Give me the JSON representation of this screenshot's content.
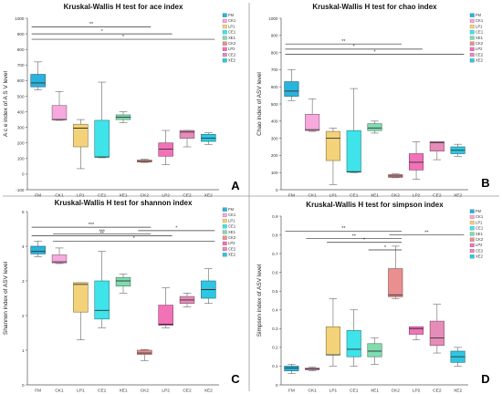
{
  "colors": {
    "FM": "#2ab3dc",
    "CK1": "#f5a9dc",
    "LP1": "#f3d27a",
    "CE1": "#3fe3ea",
    "XE1": "#7fdcaf",
    "CK2": "#ea8f8f",
    "LP2": "#f272b8",
    "CE2": "#e58cb8",
    "XE2": "#2ec7e3"
  },
  "chart_data": [
    {
      "type": "box",
      "title": "Kruskal-Wallis H test for ace index",
      "ylabel": "A c e index of A S V level",
      "panel_label": "A",
      "ylim": [
        -100,
        1000
      ],
      "yticks": [
        -100,
        0,
        100,
        200,
        300,
        400,
        500,
        600,
        700,
        800,
        900,
        1000
      ],
      "categories": [
        "FM",
        "CK1",
        "LP1",
        "CE1",
        "XE1",
        "CK2",
        "LP2",
        "CE2",
        "XE2"
      ],
      "boxes": [
        {
          "min": 540,
          "q1": 560,
          "median": 585,
          "q3": 640,
          "max": 720
        },
        {
          "min": 345,
          "q1": 348,
          "median": 350,
          "q3": 440,
          "max": 530
        },
        {
          "min": 35,
          "q1": 175,
          "median": 295,
          "q3": 320,
          "max": 350
        },
        {
          "min": 105,
          "q1": 108,
          "median": 110,
          "q3": 345,
          "max": 590
        },
        {
          "min": 330,
          "q1": 350,
          "median": 365,
          "q3": 380,
          "max": 400
        },
        {
          "min": 75,
          "q1": 78,
          "median": 82,
          "q3": 90,
          "max": 95
        },
        {
          "min": 60,
          "q1": 115,
          "median": 160,
          "q3": 200,
          "max": 280
        },
        {
          "min": 175,
          "q1": 230,
          "median": 270,
          "q3": 280,
          "max": 280
        },
        {
          "min": 190,
          "q1": 210,
          "median": 230,
          "q3": 255,
          "max": 265
        }
      ],
      "significance": [
        {
          "x1": "FM",
          "x2": "CK2",
          "y": 945,
          "text": "**"
        },
        {
          "x1": "FM",
          "x2": "LP2",
          "y": 900,
          "text": "*"
        },
        {
          "x1": "FM",
          "x2": "XE2",
          "y": 865,
          "text": "*"
        }
      ],
      "legend": [
        "FM",
        "CK1",
        "LP1",
        "CE1",
        "XE1",
        "CK2",
        "LP2",
        "CE2",
        "XE2"
      ]
    },
    {
      "type": "box",
      "title": "Kruskal-Wallis H test for chao index",
      "ylabel": "Chao index of ASV level",
      "panel_label": "B",
      "ylim": [
        0,
        1000
      ],
      "yticks": [
        0,
        100,
        200,
        300,
        400,
        500,
        600,
        700,
        800,
        900,
        1000
      ],
      "categories": [
        "FM",
        "CK1",
        "LP1",
        "CE1",
        "XE1",
        "CK2",
        "LP2",
        "CE2",
        "XE2"
      ],
      "boxes": [
        {
          "min": 520,
          "q1": 545,
          "median": 575,
          "q3": 630,
          "max": 700
        },
        {
          "min": 340,
          "q1": 345,
          "median": 350,
          "q3": 440,
          "max": 530
        },
        {
          "min": 30,
          "q1": 170,
          "median": 300,
          "q3": 340,
          "max": 360
        },
        {
          "min": 100,
          "q1": 102,
          "median": 105,
          "q3": 345,
          "max": 590
        },
        {
          "min": 330,
          "q1": 345,
          "median": 360,
          "q3": 385,
          "max": 400
        },
        {
          "min": 70,
          "q1": 72,
          "median": 80,
          "q3": 88,
          "max": 92
        },
        {
          "min": 60,
          "q1": 115,
          "median": 160,
          "q3": 210,
          "max": 280
        },
        {
          "min": 175,
          "q1": 225,
          "median": 275,
          "q3": 280,
          "max": 280
        },
        {
          "min": 195,
          "q1": 210,
          "median": 230,
          "q3": 250,
          "max": 265
        }
      ],
      "significance": [
        {
          "x1": "FM",
          "x2": "CK2",
          "y": 850,
          "text": "**"
        },
        {
          "x1": "FM",
          "x2": "LP2",
          "y": 820,
          "text": "*"
        },
        {
          "x1": "FM",
          "x2": "XE2",
          "y": 790,
          "text": "*"
        }
      ],
      "legend": [
        "FM",
        "CK1",
        "LP1",
        "CE1",
        "XE1",
        "CK2",
        "LP2",
        "CE2",
        "XE2"
      ]
    },
    {
      "type": "box",
      "title": "Kruskal-Wallis H test for shannon index",
      "ylabel": "Shannon index of ASV level",
      "panel_label": "C",
      "ylim": [
        0,
        5
      ],
      "yticks": [
        0,
        1,
        2,
        3,
        4,
        5
      ],
      "categories": [
        "FM",
        "CK1",
        "LP1",
        "CE1",
        "XE1",
        "CK2",
        "LP2",
        "CE2",
        "XE2"
      ],
      "boxes": [
        {
          "min": 3.7,
          "q1": 3.78,
          "median": 3.85,
          "q3": 4.0,
          "max": 4.15
        },
        {
          "min": 3.5,
          "q1": 3.52,
          "median": 3.55,
          "q3": 3.75,
          "max": 3.95
        },
        {
          "min": 1.3,
          "q1": 2.1,
          "median": 2.9,
          "q3": 2.95,
          "max": 2.95
        },
        {
          "min": 1.65,
          "q1": 1.9,
          "median": 2.15,
          "q3": 3.0,
          "max": 3.85
        },
        {
          "min": 2.65,
          "q1": 2.85,
          "median": 3.0,
          "q3": 3.1,
          "max": 3.2
        },
        {
          "min": 0.7,
          "q1": 0.88,
          "median": 0.92,
          "q3": 1.0,
          "max": 1.02
        },
        {
          "min": 1.65,
          "q1": 1.72,
          "median": 1.75,
          "q3": 2.3,
          "max": 2.8
        },
        {
          "min": 2.25,
          "q1": 2.35,
          "median": 2.45,
          "q3": 2.55,
          "max": 2.65
        },
        {
          "min": 2.35,
          "q1": 2.5,
          "median": 2.75,
          "q3": 3.0,
          "max": 3.35
        }
      ],
      "significance": [
        {
          "x1": "FM",
          "x2": "CK2",
          "y": 4.55,
          "text": "***"
        },
        {
          "x1": "CK1",
          "x2": "CK2",
          "y": 4.35,
          "text": "***"
        },
        {
          "x1": "CK1",
          "x2": "XE2",
          "y": 4.15,
          "text": "*"
        },
        {
          "x1": "FM",
          "x2": "LP2",
          "y": 4.3,
          "text": "**"
        },
        {
          "x1": "CK2",
          "x2": "XE2",
          "y": 4.45,
          "text": "*"
        }
      ],
      "legend": [
        "FM",
        "CK1",
        "LP1",
        "CE1",
        "XE1",
        "CK2",
        "LP2",
        "CE2",
        "XE2"
      ]
    },
    {
      "type": "box",
      "title": "Kruskal-Wallis H test for simpson index",
      "ylabel": "Simpson index of ASV level",
      "panel_label": "D",
      "ylim": [
        0,
        0.9
      ],
      "yticks": [
        0,
        0.1,
        0.2,
        0.3,
        0.4,
        0.5,
        0.6,
        0.7,
        0.8,
        0.9
      ],
      "ytick_labels": [
        "0",
        "0.1",
        "0.2",
        "0.3",
        "0.4",
        "0.5",
        "0.6",
        "0.7",
        "0.8",
        "0.9"
      ],
      "categories": [
        "FM",
        "CK1",
        "LP1",
        "CE1",
        "XE1",
        "CK2",
        "LP2",
        "CE2",
        "XE2"
      ],
      "boxes": [
        {
          "min": 0.06,
          "q1": 0.075,
          "median": 0.09,
          "q3": 0.1,
          "max": 0.11
        },
        {
          "min": 0.075,
          "q1": 0.08,
          "median": 0.085,
          "q3": 0.09,
          "max": 0.095
        },
        {
          "min": 0.1,
          "q1": 0.16,
          "median": 0.16,
          "q3": 0.31,
          "max": 0.46
        },
        {
          "min": 0.1,
          "q1": 0.15,
          "median": 0.19,
          "q3": 0.29,
          "max": 0.4
        },
        {
          "min": 0.11,
          "q1": 0.15,
          "median": 0.18,
          "q3": 0.22,
          "max": 0.25
        },
        {
          "min": 0.46,
          "q1": 0.47,
          "median": 0.48,
          "q3": 0.62,
          "max": 0.74
        },
        {
          "min": 0.24,
          "q1": 0.27,
          "median": 0.3,
          "q3": 0.31,
          "max": 0.31
        },
        {
          "min": 0.17,
          "q1": 0.21,
          "median": 0.25,
          "q3": 0.34,
          "max": 0.43
        },
        {
          "min": 0.1,
          "q1": 0.12,
          "median": 0.15,
          "q3": 0.18,
          "max": 0.2
        }
      ],
      "significance": [
        {
          "x1": "FM",
          "x2": "CK2",
          "y": 0.82,
          "text": "**"
        },
        {
          "x1": "CK1",
          "x2": "CK2",
          "y": 0.78,
          "text": "**"
        },
        {
          "x1": "LP1",
          "x2": "CK2",
          "y": 0.76,
          "text": "*"
        },
        {
          "x1": "XE1",
          "x2": "CK2",
          "y": 0.72,
          "text": "*"
        },
        {
          "x1": "CK2",
          "x2": "XE2",
          "y": 0.8,
          "text": "**"
        }
      ],
      "legend": [
        "FM",
        "CK1",
        "LP1",
        "CE1",
        "XE1",
        "CK2",
        "LP2",
        "CE2",
        "XE2"
      ]
    }
  ]
}
